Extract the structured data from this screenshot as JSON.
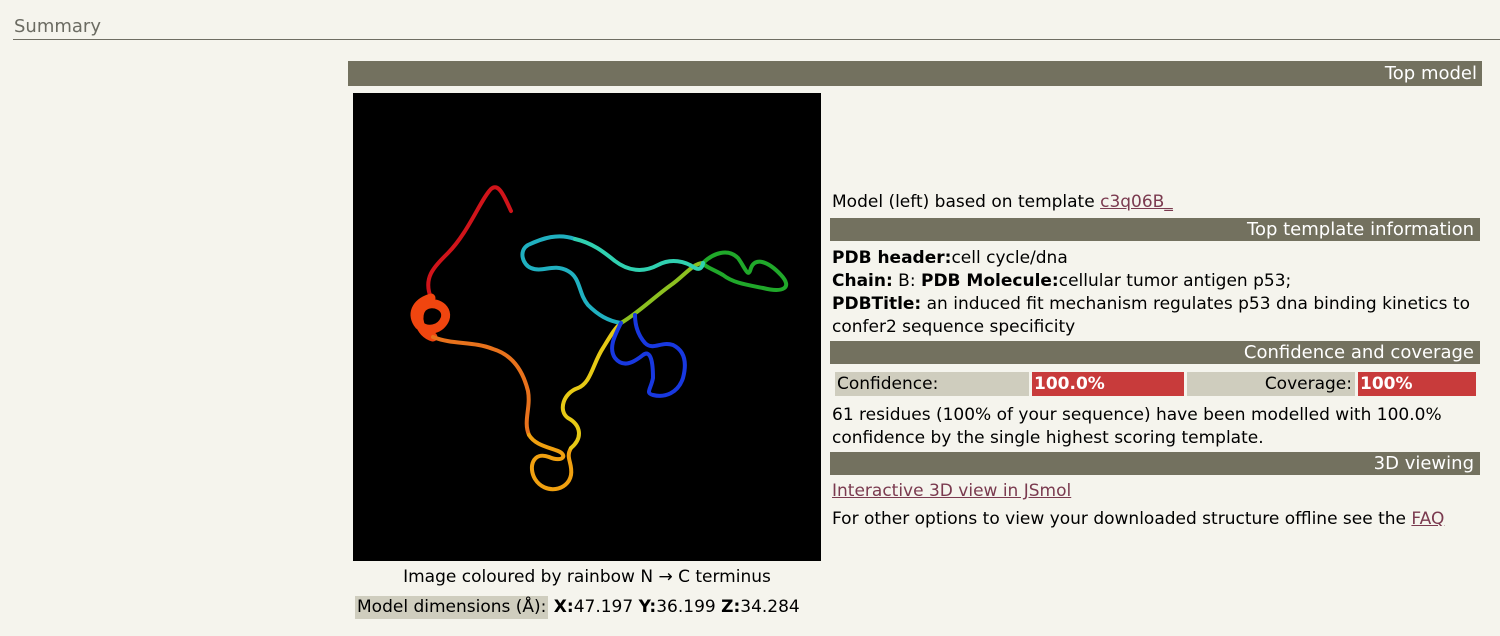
{
  "section": {
    "title": "Summary"
  },
  "top_model": {
    "bar_label": "Top model",
    "image_caption": "Image coloured by rainbow N → C terminus",
    "dimensions": {
      "label": "Model dimensions (Å):",
      "x_label": "X:",
      "x_value": "47.197",
      "y_label": "Y:",
      "y_value": "36.199",
      "z_label": "Z:",
      "z_value": "34.284"
    }
  },
  "model_line": {
    "text": "Model (left) based on template ",
    "template_link": "c3q06B_"
  },
  "template_info": {
    "bar_label": "Top template information",
    "pdb_header_label": "PDB header:",
    "pdb_header_value": "cell cycle/dna",
    "chain_label": "Chain:",
    "chain_value": " B: ",
    "molecule_label": "PDB Molecule:",
    "molecule_value": "cellular tumor antigen p53;",
    "title_label": "PDBTitle:",
    "title_value": " an induced fit mechanism regulates p53 dna binding kinetics to confer2 sequence specificity"
  },
  "confidence": {
    "bar_label": "Confidence and coverage",
    "confidence_label": "Confidence:",
    "confidence_value": "100.0%",
    "coverage_label": "Coverage:",
    "coverage_value": "100%",
    "summary": "61 residues (100% of your sequence) have been modelled with 100.0% confidence by the single highest scoring template."
  },
  "viewing": {
    "bar_label": "3D viewing",
    "jsmol_link": "Interactive 3D view in JSmol",
    "offline_text": "For other options to view your downloaded structure offline see the ",
    "faq_link": "FAQ"
  },
  "colors": {
    "bar_bg": "#73715f",
    "label_bg": "#cfcdbe",
    "value_bg": "#c83b3b",
    "link": "#7a3a4f"
  }
}
